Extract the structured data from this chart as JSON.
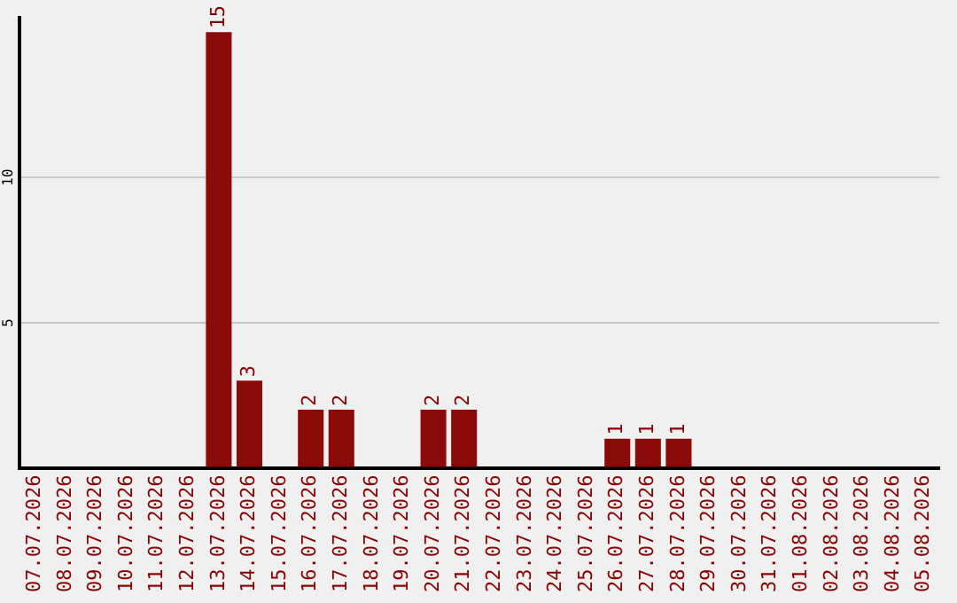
{
  "chart_data": {
    "type": "bar",
    "categories": [
      "07.07.2026",
      "08.07.2026",
      "09.07.2026",
      "10.07.2026",
      "11.07.2026",
      "12.07.2026",
      "13.07.2026",
      "14.07.2026",
      "15.07.2026",
      "16.07.2026",
      "17.07.2026",
      "18.07.2026",
      "19.07.2026",
      "20.07.2026",
      "21.07.2026",
      "22.07.2026",
      "23.07.2026",
      "24.07.2026",
      "25.07.2026",
      "26.07.2026",
      "27.07.2026",
      "28.07.2026",
      "29.07.2026",
      "30.07.2026",
      "31.07.2026",
      "01.08.2026",
      "02.08.2026",
      "03.08.2026",
      "04.08.2026",
      "05.08.2026"
    ],
    "values": [
      0,
      0,
      0,
      0,
      0,
      0,
      15,
      3,
      0,
      2,
      2,
      0,
      0,
      2,
      2,
      0,
      0,
      0,
      0,
      1,
      1,
      1,
      0,
      0,
      0,
      0,
      0,
      0,
      0,
      0
    ],
    "value_labels": [
      null,
      null,
      null,
      null,
      null,
      null,
      "15",
      "3",
      null,
      "2",
      "2",
      null,
      null,
      "2",
      "2",
      null,
      null,
      null,
      null,
      "1",
      "1",
      "1",
      null,
      null,
      null,
      null,
      null,
      null,
      null,
      null
    ],
    "color": "#8b0b0b",
    "ylim": [
      0,
      15.5
    ],
    "yticks": [
      {
        "value": 0,
        "label": null
      },
      5,
      10
    ],
    "grid": "y",
    "legend": false
  }
}
